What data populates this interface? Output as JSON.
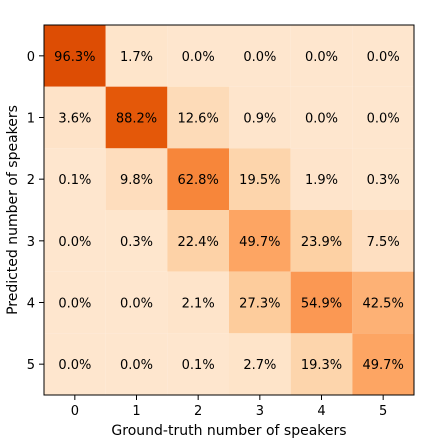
{
  "chart_data": {
    "type": "heatmap",
    "title": "",
    "xlabel": "Ground-truth number of speakers",
    "ylabel": "Predicted number of speakers",
    "x_categories": [
      "0",
      "1",
      "2",
      "3",
      "4",
      "5"
    ],
    "y_categories": [
      "0",
      "1",
      "2",
      "3",
      "4",
      "5"
    ],
    "value_unit": "%",
    "values": [
      [
        96.3,
        1.7,
        0.0,
        0.0,
        0.0,
        0.0
      ],
      [
        3.6,
        88.2,
        12.6,
        0.9,
        0.0,
        0.0
      ],
      [
        0.1,
        9.8,
        62.8,
        19.5,
        1.9,
        0.3
      ],
      [
        0.0,
        0.3,
        22.4,
        49.7,
        23.9,
        7.5
      ],
      [
        0.0,
        0.0,
        2.1,
        27.3,
        54.9,
        42.5
      ],
      [
        0.0,
        0.0,
        0.1,
        2.7,
        19.3,
        49.7
      ]
    ],
    "color_range": [
      0,
      100
    ],
    "colormap": "Oranges"
  }
}
